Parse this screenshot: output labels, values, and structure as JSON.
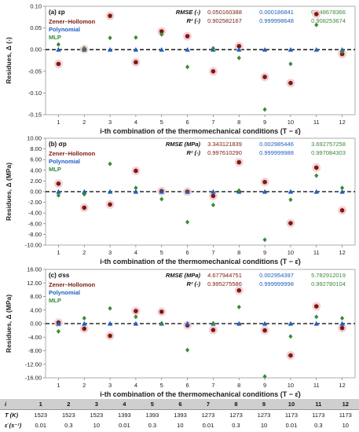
{
  "colors": {
    "zener": "#7b1a0f",
    "poly": "#1f5fbf",
    "mlp": "#3a8a3a",
    "halo": "#f2c9cf",
    "zero_line": "#000000",
    "table_header": "#cfcfcf"
  },
  "chart_data": [
    {
      "type": "scatter",
      "panel_label": "(a) εp",
      "xlabel": "i-th combination of the thermomechanical conditions (T − ε̇)",
      "ylabel": "Residues, Δ (-)",
      "categories": [
        "1",
        "2",
        "3",
        "4",
        "5",
        "6",
        "7",
        "8",
        "9",
        "10",
        "11",
        "12"
      ],
      "ylim": [
        -0.15,
        0.1
      ],
      "yticks": [
        -0.15,
        -0.1,
        -0.05,
        0.0,
        0.05,
        0.1
      ],
      "ytick_labels": [
        "-0.15",
        "-0.10",
        "-0.05",
        "0.00",
        "0.05",
        "0.10"
      ],
      "zero_line": true,
      "legend_position": "top-left",
      "series": [
        {
          "name": "Zener–Hollomon",
          "marker": "circle",
          "values": [
            -0.033,
            0.001,
            0.078,
            -0.029,
            0.042,
            0.031,
            -0.05,
            0.008,
            -0.063,
            -0.077,
            0.082,
            -0.01
          ]
        },
        {
          "name": "Polynomial",
          "marker": "triangle",
          "values": [
            0,
            0,
            0,
            0,
            0,
            0,
            0,
            0,
            0,
            0,
            0,
            0
          ]
        },
        {
          "name": "MLP",
          "marker": "diamond",
          "values": [
            0.012,
            0.003,
            0.027,
            0.028,
            0.035,
            -0.04,
            0.003,
            -0.019,
            -0.138,
            -0.033,
            0.057,
            -0.005
          ]
        }
      ],
      "metrics": {
        "rmse_label": "RMSE (-)",
        "r2_label": "R² (-)",
        "rmse": [
          "0.050160388",
          "0.000186841",
          "0.048678366"
        ],
        "r2": [
          "0.902582167",
          "0.999998648",
          "0.908253674"
        ]
      }
    },
    {
      "type": "scatter",
      "panel_label": "(b) σp",
      "xlabel": "i-th combination of the thermomechanical conditions (T − ε̇)",
      "ylabel": "Residues, Δ (MPa)",
      "categories": [
        "1",
        "2",
        "3",
        "4",
        "5",
        "6",
        "7",
        "8",
        "9",
        "10",
        "11",
        "12"
      ],
      "ylim": [
        -10,
        10
      ],
      "yticks": [
        -10,
        -8,
        -6,
        -4,
        -2,
        0,
        2,
        4,
        6,
        8,
        10
      ],
      "ytick_labels": [
        "-10.00",
        "-8.00",
        "-6.00",
        "-4.00",
        "-2.00",
        "0.00",
        "2.00",
        "4.00",
        "6.00",
        "8.00",
        "10.00"
      ],
      "zero_line": true,
      "legend_position": "top-left",
      "series": [
        {
          "name": "Zener–Hollomon",
          "marker": "circle",
          "values": [
            1.5,
            -3.0,
            -2.4,
            3.9,
            0.1,
            0.0,
            -0.8,
            5.5,
            1.8,
            -5.9,
            4.5,
            -3.5
          ]
        },
        {
          "name": "Polynomial",
          "marker": "triangle",
          "values": [
            0,
            0,
            0,
            0,
            0,
            0,
            0,
            0,
            0,
            0,
            0,
            0
          ]
        },
        {
          "name": "MLP",
          "marker": "diamond",
          "values": [
            -0.7,
            -0.5,
            5.2,
            0.7,
            -1.4,
            -5.7,
            -2.5,
            0.2,
            -9.0,
            -1.5,
            3.0,
            0.7
          ]
        }
      ],
      "metrics": {
        "rmse_label": "RMSE (MPa)",
        "r2_label": "R² (-)",
        "rmse": [
          "3.343121839",
          "0.002985446",
          "3.692757258"
        ],
        "r2": [
          "0.997610290",
          "0.999999988",
          "0.997084303"
        ]
      }
    },
    {
      "type": "scatter",
      "panel_label": "(c) σss",
      "xlabel": "i-th combination of the thermomechanical conditions (T − ε̇)",
      "ylabel": "Residues, Δ (MPa)",
      "categories": [
        "1",
        "2",
        "3",
        "4",
        "5",
        "6",
        "7",
        "8",
        "9",
        "10",
        "11",
        "12"
      ],
      "ylim": [
        -16,
        16
      ],
      "yticks": [
        -16,
        -12,
        -8,
        -4,
        0,
        4,
        8,
        12,
        16
      ],
      "ytick_labels": [
        "-16.00",
        "-12.00",
        "-8.00",
        "-4.00",
        "0.00",
        "4.00",
        "8.00",
        "12.00",
        "16.00"
      ],
      "zero_line": true,
      "legend_position": "top-left",
      "series": [
        {
          "name": "Zener–Hollomon",
          "marker": "circle",
          "values": [
            0.3,
            -1.5,
            -3.6,
            3.7,
            3.5,
            -0.5,
            -1.9,
            9.8,
            -2.0,
            -9.4,
            5.1,
            -1.3
          ]
        },
        {
          "name": "Polynomial",
          "marker": "triangle",
          "values": [
            0,
            0,
            0,
            0,
            0,
            0,
            0,
            0,
            0,
            0,
            0,
            0
          ]
        },
        {
          "name": "MLP",
          "marker": "diamond",
          "values": [
            -2.3,
            1.6,
            4.5,
            2.0,
            0.1,
            -7.8,
            0.1,
            4.9,
            -15.6,
            -3.8,
            2.0,
            1.6
          ]
        }
      ],
      "metrics": {
        "rmse_label": "RMSE (MPa)",
        "r2_label": "R² (-)",
        "rmse": [
          "4.677944751",
          "0.002954397",
          "5.782912019"
        ],
        "r2": [
          "0.995275586",
          "0.999999998",
          "0.992780104"
        ]
      }
    }
  ],
  "table": {
    "row_labels": [
      "i",
      "T (K)",
      "ε̇ (s⁻¹)"
    ],
    "i": [
      "1",
      "2",
      "3",
      "4",
      "5",
      "6",
      "7",
      "8",
      "9",
      "10",
      "11",
      "12"
    ],
    "T": [
      "1523",
      "1523",
      "1523",
      "1393",
      "1393",
      "1393",
      "1273",
      "1273",
      "1273",
      "1173",
      "1173",
      "1173"
    ],
    "rate": [
      "0.01",
      "0.3",
      "10",
      "0.01",
      "0.3",
      "10",
      "0.01",
      "0.3",
      "10",
      "0.01",
      "0.3",
      "10"
    ]
  }
}
